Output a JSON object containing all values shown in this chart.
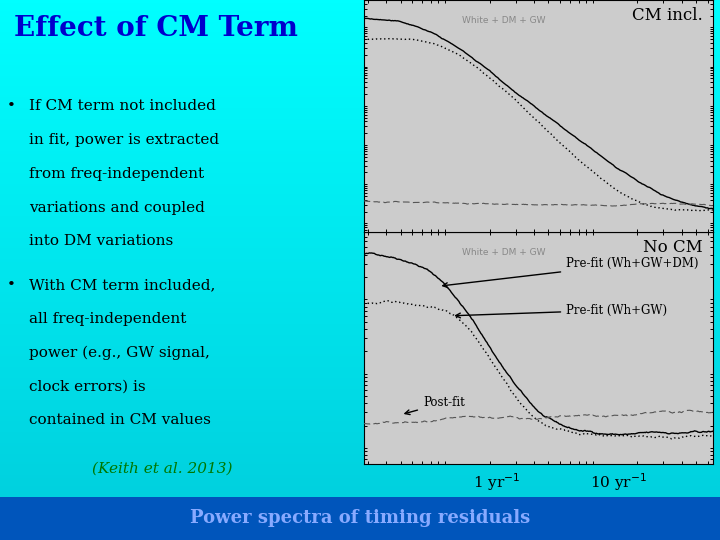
{
  "title": "Effect of CM Term",
  "title_color": "#0000cc",
  "bg_color": "#00ccee",
  "bullet1": [
    "If CM term not included",
    "in fit, power is extracted",
    "from freq-independent",
    "variations and coupled",
    "into DM variations"
  ],
  "bullet2": [
    "With CM term included,",
    "all freq-independent",
    "power (e.g., GW signal,",
    "clock errors) is",
    "contained in CM values"
  ],
  "citation": "(Keith et al. 2013)",
  "citation_color": "#007700",
  "plot_bg": "#cccccc",
  "top_label": "No CM",
  "bottom_label": "CM incl.",
  "bottom_caption": "Power spectra of timing residuals",
  "caption_bg": "#0055bb",
  "caption_color": "#88aaff",
  "watermark": "White + DM + GW",
  "xaxis_label_1yr": "1 yr",
  "xaxis_label_10yr": "10 yr",
  "annotation_prefit_dm": "Pre-fit (Wh+GW+DM)",
  "annotation_prefit_gw": "Pre-fit (Wh+GW)",
  "annotation_postfit": "Post-fit"
}
